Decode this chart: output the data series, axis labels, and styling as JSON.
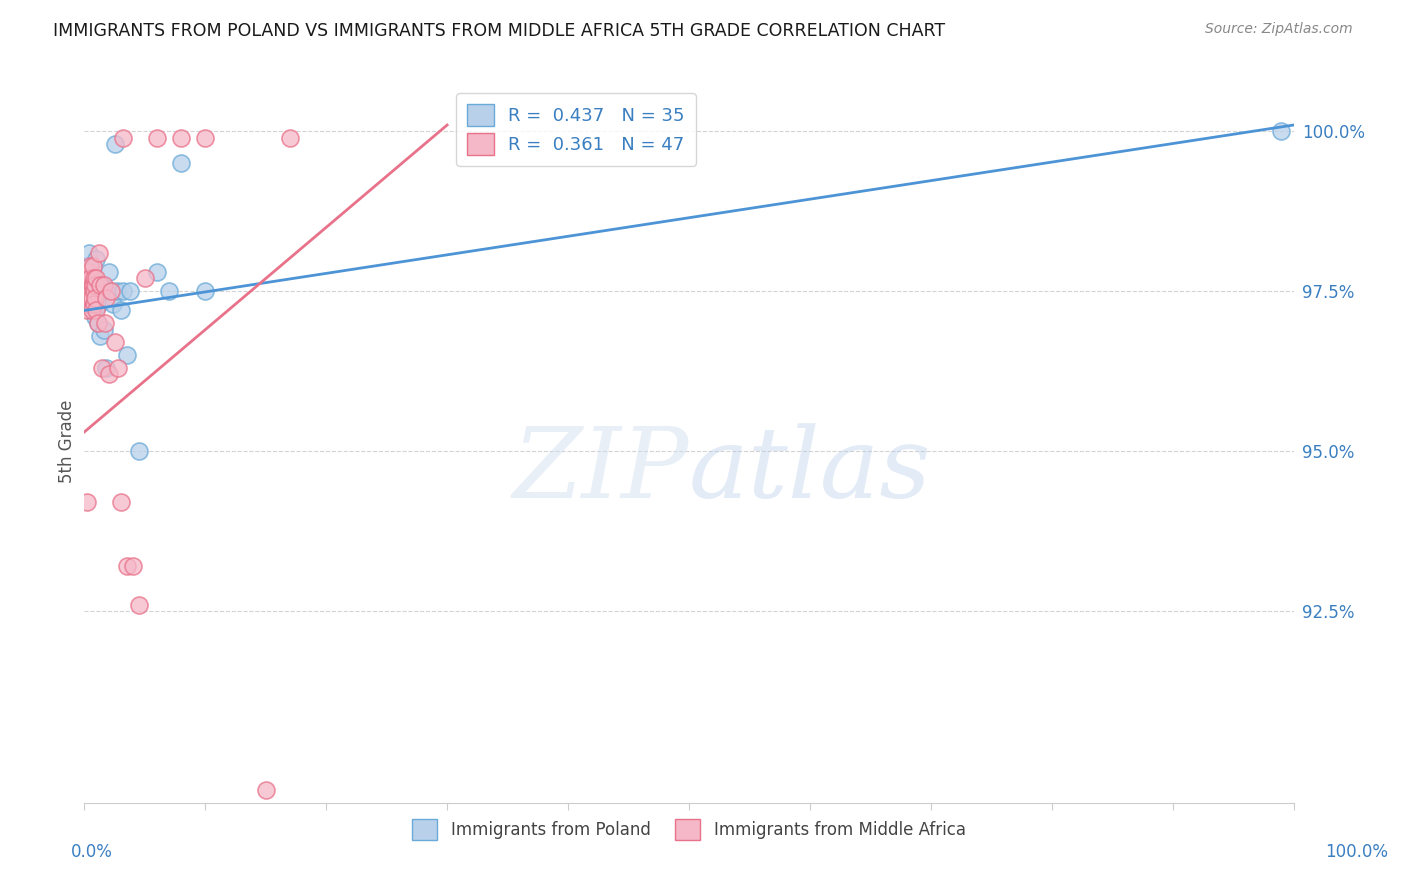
{
  "title": "IMMIGRANTS FROM POLAND VS IMMIGRANTS FROM MIDDLE AFRICA 5TH GRADE CORRELATION CHART",
  "source": "Source: ZipAtlas.com",
  "ylabel": "5th Grade",
  "y_axis_labels": [
    "100.0%",
    "97.5%",
    "95.0%",
    "92.5%"
  ],
  "y_axis_values": [
    1.0,
    0.975,
    0.95,
    0.925
  ],
  "x_range": [
    0.0,
    1.0
  ],
  "y_range": [
    0.895,
    1.008
  ],
  "poland_scatter_x": [
    0.001,
    0.002,
    0.003,
    0.004,
    0.004,
    0.005,
    0.005,
    0.006,
    0.006,
    0.007,
    0.008,
    0.009,
    0.01,
    0.011,
    0.012,
    0.013,
    0.014,
    0.015,
    0.016,
    0.018,
    0.02,
    0.022,
    0.024,
    0.025,
    0.027,
    0.03,
    0.032,
    0.035,
    0.038,
    0.045,
    0.06,
    0.07,
    0.08,
    0.1,
    0.99
  ],
  "poland_scatter_y": [
    0.979,
    0.977,
    0.976,
    0.981,
    0.974,
    0.978,
    0.976,
    0.975,
    0.973,
    0.972,
    0.974,
    0.971,
    0.98,
    0.97,
    0.973,
    0.968,
    0.976,
    0.975,
    0.969,
    0.963,
    0.978,
    0.975,
    0.973,
    0.998,
    0.975,
    0.972,
    0.975,
    0.965,
    0.975,
    0.95,
    0.978,
    0.975,
    0.995,
    0.975,
    1.0
  ],
  "africa_scatter_x": [
    0.001,
    0.001,
    0.002,
    0.002,
    0.002,
    0.003,
    0.003,
    0.003,
    0.004,
    0.004,
    0.005,
    0.005,
    0.005,
    0.006,
    0.006,
    0.006,
    0.007,
    0.007,
    0.008,
    0.008,
    0.008,
    0.009,
    0.009,
    0.01,
    0.01,
    0.011,
    0.012,
    0.013,
    0.015,
    0.016,
    0.017,
    0.018,
    0.02,
    0.022,
    0.025,
    0.028,
    0.03,
    0.032,
    0.035,
    0.04,
    0.045,
    0.05,
    0.06,
    0.08,
    0.1,
    0.15,
    0.17
  ],
  "africa_scatter_y": [
    0.978,
    0.974,
    0.976,
    0.972,
    0.942,
    0.977,
    0.975,
    0.973,
    0.978,
    0.975,
    0.979,
    0.977,
    0.974,
    0.976,
    0.974,
    0.972,
    0.979,
    0.976,
    0.977,
    0.975,
    0.973,
    0.976,
    0.974,
    0.972,
    0.977,
    0.97,
    0.981,
    0.976,
    0.963,
    0.976,
    0.97,
    0.974,
    0.962,
    0.975,
    0.967,
    0.963,
    0.942,
    0.999,
    0.932,
    0.932,
    0.926,
    0.977,
    0.999,
    0.999,
    0.999,
    0.897,
    0.999
  ],
  "poland_line_x0": 0.0,
  "poland_line_x1": 1.0,
  "poland_line_y0": 0.972,
  "poland_line_y1": 1.001,
  "africa_line_x0": 0.0,
  "africa_line_x1": 0.3,
  "africa_line_y0": 0.953,
  "africa_line_y1": 1.001,
  "poland_color": "#4d94d6",
  "africa_color": "#e8728a",
  "poland_scatter_facecolor": "#b8d0ea",
  "poland_scatter_edgecolor": "#6aaad8",
  "africa_scatter_facecolor": "#f5b8c8",
  "africa_scatter_edgecolor": "#e8728a",
  "watermark_zip": "ZIP",
  "watermark_atlas": "atlas",
  "background_color": "#ffffff",
  "grid_color": "#c8c8c8",
  "title_color": "#1a1a1a",
  "axis_label_color": "#3a7fc1",
  "ylabel_color": "#555555",
  "legend_r_color": "#3a7fc1",
  "legend_n_color": "#3a7fc1"
}
